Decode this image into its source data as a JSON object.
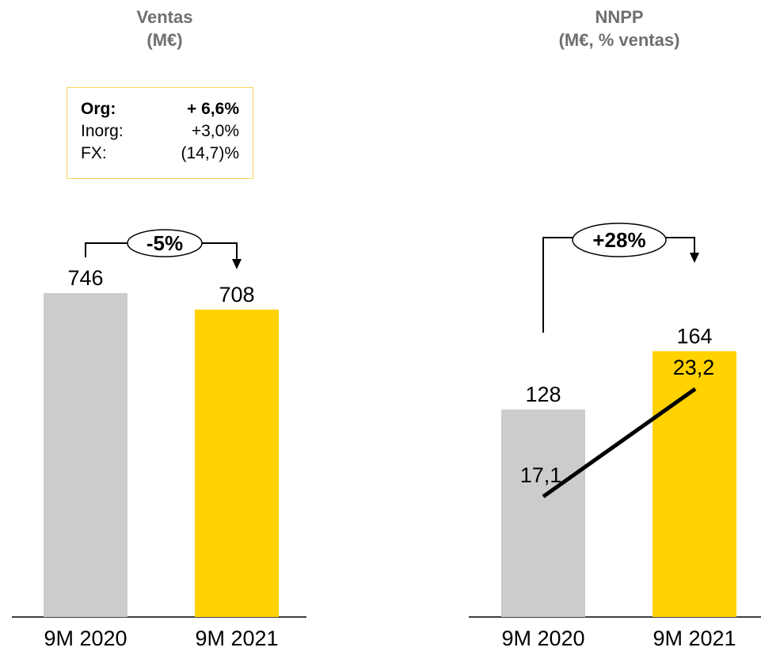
{
  "panels": [
    {
      "title_line1": "Ventas",
      "title_line2": "(M€)",
      "growth_table": [
        {
          "label": "Org:",
          "value": "+ 6,6%",
          "bold": true
        },
        {
          "label": "Inorg:",
          "value": "+3,0%",
          "bold": false
        },
        {
          "label": "FX:",
          "value": "(14,7)%",
          "bold": false
        }
      ]
    },
    {
      "title_line1": "NNPP",
      "title_line2": "(M€, % ventas)"
    }
  ],
  "colors": {
    "bar_2020": "#cccccc",
    "bar_2021": "#ffd200",
    "title": "#6f6f6f",
    "box_border": "#f8d25a"
  },
  "chart_data": [
    {
      "type": "bar",
      "title": "Ventas (M€)",
      "categories": [
        "9M 2020",
        "9M 2021"
      ],
      "values": [
        746,
        708
      ],
      "value_labels": [
        "746",
        "708"
      ],
      "change_label": "-5%",
      "ylim": [
        0,
        746
      ]
    },
    {
      "type": "bar",
      "title": "NNPP (M€, % ventas)",
      "categories": [
        "9M 2020",
        "9M 2021"
      ],
      "values": [
        128,
        164
      ],
      "value_labels": [
        "128",
        "164"
      ],
      "change_label": "+28%",
      "ylim": [
        0,
        195
      ],
      "line_series": {
        "values": [
          17.1,
          23.2
        ],
        "labels": [
          "17,1",
          "23,2"
        ],
        "ylim": [
          0,
          40
        ]
      }
    }
  ]
}
